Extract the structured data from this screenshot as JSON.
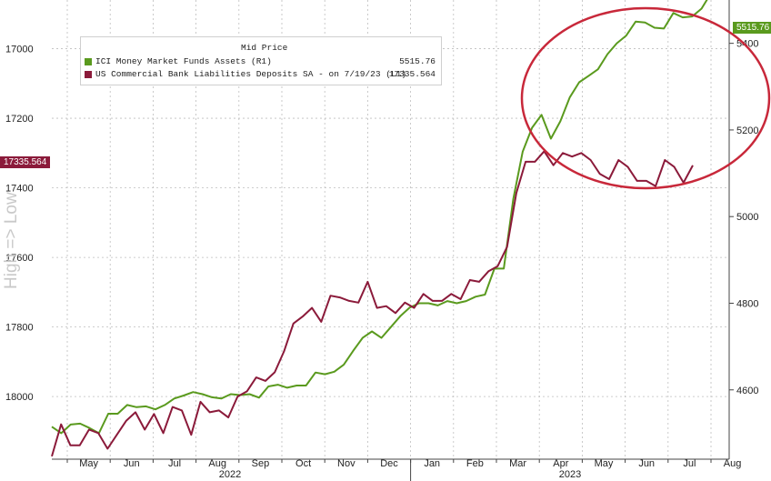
{
  "chart_data": {
    "type": "line",
    "legend": {
      "title": "Mid Price",
      "entries": [
        {
          "name": "ICI Money Market Funds Assets (R1)",
          "value": "5515.76",
          "color": "#5a9a1e"
        },
        {
          "name": "US Commercial Bank Liabilities Deposits SA - on 7/19/23 (L1)",
          "value": "17335.564",
          "color": "#8b1a3a"
        }
      ]
    },
    "side_label": "High => Low",
    "left_axis": {
      "ticks": [
        "17000",
        "17200",
        "17400",
        "17600",
        "17800",
        "18000"
      ],
      "inverted": true,
      "range": [
        16860,
        18180
      ]
    },
    "right_axis": {
      "ticks": [
        "5400",
        "5200",
        "5000",
        "4800",
        "4600"
      ],
      "range": [
        4440,
        5500
      ]
    },
    "x_ticks": [
      "May",
      "Jun",
      "Jul",
      "Aug",
      "Sep",
      "Oct",
      "Nov",
      "Dec",
      "Jan",
      "Feb",
      "Mar",
      "Apr",
      "May",
      "Jun",
      "Jul",
      "Aug"
    ],
    "years": [
      "2022",
      "2023"
    ],
    "badges": {
      "right": "5515.76",
      "left": "17335.564"
    },
    "series": [
      {
        "name": "ICI Money Market Funds Assets",
        "axis": "right",
        "color": "#5a9a1e",
        "values": [
          4515,
          4500,
          4520,
          4522,
          4512,
          4500,
          4545,
          4545,
          4565,
          4560,
          4562,
          4555,
          4565,
          4580,
          4587,
          4595,
          4590,
          4583,
          4580,
          4590,
          4588,
          4590,
          4582,
          4608,
          4612,
          4605,
          4610,
          4610,
          4640,
          4636,
          4642,
          4658,
          4690,
          4720,
          4735,
          4720,
          4745,
          4770,
          4790,
          4800,
          4800,
          4795,
          4805,
          4800,
          4805,
          4815,
          4820,
          4880,
          4880,
          5040,
          5150,
          5205,
          5235,
          5180,
          5220,
          5275,
          5310,
          5325,
          5340,
          5375,
          5400,
          5418,
          5450,
          5448,
          5436,
          5434,
          5470,
          5460,
          5462,
          5480,
          5515.76
        ]
      },
      {
        "name": "US Commercial Bank Liabilities Deposits SA",
        "axis": "left",
        "color": "#8b1a3a",
        "values": [
          18172,
          18080,
          18140,
          18140,
          18095,
          18105,
          18150,
          18110,
          18070,
          18045,
          18095,
          18050,
          18105,
          18030,
          18040,
          18110,
          18015,
          18045,
          18040,
          18060,
          18000,
          17985,
          17945,
          17955,
          17930,
          17870,
          17790,
          17770,
          17745,
          17785,
          17710,
          17715,
          17725,
          17730,
          17670,
          17745,
          17740,
          17760,
          17730,
          17745,
          17705,
          17725,
          17725,
          17705,
          17720,
          17665,
          17670,
          17640,
          17625,
          17570,
          17415,
          17325,
          17325,
          17295,
          17335,
          17300,
          17310,
          17300,
          17320,
          17360,
          17375,
          17320,
          17340,
          17380,
          17380,
          17395,
          17320,
          17340,
          17385,
          17335.564
        ]
      }
    ]
  }
}
